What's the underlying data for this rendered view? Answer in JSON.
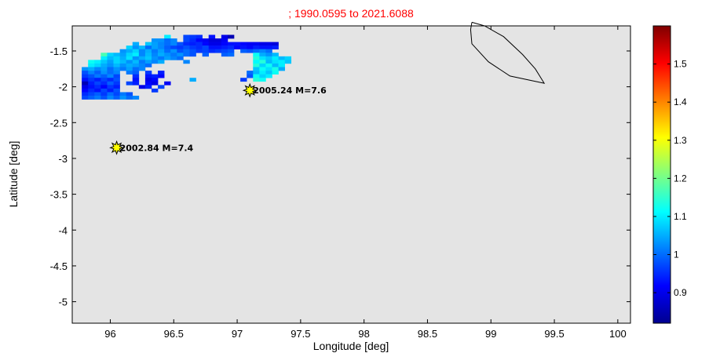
{
  "chart_data": {
    "type": "heatmap",
    "title": ";  1990.0595 to 2021.6088",
    "xlabel": "Longitude [deg]",
    "ylabel": "Latitude [deg]",
    "xlim": [
      95.7,
      100.1
    ],
    "ylim": [
      -5.3,
      -1.15
    ],
    "xticks": [
      "96",
      "96.5",
      "97",
      "97.5",
      "98",
      "98.5",
      "99",
      "99.5",
      "100"
    ],
    "xtick_values": [
      96,
      96.5,
      97,
      97.5,
      98,
      98.5,
      99,
      99.5,
      100
    ],
    "yticks": [
      "-1.5",
      "-2",
      "-2.5",
      "-3",
      "-3.5",
      "-4",
      "-4.5",
      "-5"
    ],
    "ytick_values": [
      -1.5,
      -2,
      -2.5,
      -3,
      -3.5,
      -4,
      -4.5,
      -5
    ],
    "background_color": "#e4e4e4",
    "grid": false,
    "colormap": "jet",
    "colorbar": {
      "range": [
        0.82,
        1.6
      ],
      "ticks": [
        "0.9",
        "1",
        "1.1",
        "1.2",
        "1.3",
        "1.4",
        "1.5"
      ],
      "tick_values": [
        0.9,
        1.0,
        1.1,
        1.2,
        1.3,
        1.4,
        1.5
      ],
      "placement": "right"
    },
    "cell_size_deg": 0.05,
    "cells": [
      [
        96.45,
        -1.3,
        1.1
      ],
      [
        96.6,
        -1.3,
        0.97
      ],
      [
        96.65,
        -1.3,
        0.96
      ],
      [
        96.7,
        -1.3,
        0.95
      ],
      [
        96.8,
        -1.3,
        0.93
      ],
      [
        96.9,
        -1.3,
        0.9
      ],
      [
        96.95,
        -1.3,
        0.86
      ],
      [
        96.35,
        -1.35,
        1.03
      ],
      [
        96.4,
        -1.35,
        1.03
      ],
      [
        96.45,
        -1.35,
        1.0
      ],
      [
        96.5,
        -1.35,
        1.02
      ],
      [
        96.6,
        -1.35,
        0.97
      ],
      [
        96.65,
        -1.35,
        0.95
      ],
      [
        96.7,
        -1.35,
        0.92
      ],
      [
        96.75,
        -1.35,
        0.91
      ],
      [
        96.8,
        -1.35,
        0.89
      ],
      [
        96.85,
        -1.35,
        0.89
      ],
      [
        96.9,
        -1.35,
        0.91
      ],
      [
        96.2,
        -1.4,
        1.05
      ],
      [
        96.3,
        -1.4,
        1.07
      ],
      [
        96.35,
        -1.4,
        1.04
      ],
      [
        96.4,
        -1.4,
        1.02
      ],
      [
        96.45,
        -1.4,
        1.0
      ],
      [
        96.5,
        -1.4,
        1.02
      ],
      [
        96.55,
        -1.4,
        0.98
      ],
      [
        96.6,
        -1.4,
        0.95
      ],
      [
        96.65,
        -1.4,
        0.94
      ],
      [
        96.7,
        -1.4,
        0.95
      ],
      [
        96.75,
        -1.4,
        0.92
      ],
      [
        96.8,
        -1.4,
        0.9
      ],
      [
        96.85,
        -1.4,
        0.9
      ],
      [
        96.9,
        -1.4,
        0.92
      ],
      [
        96.95,
        -1.4,
        0.93
      ],
      [
        97.0,
        -1.4,
        0.93
      ],
      [
        97.05,
        -1.4,
        0.92
      ],
      [
        97.1,
        -1.4,
        0.91
      ],
      [
        97.15,
        -1.4,
        0.91
      ],
      [
        97.2,
        -1.4,
        0.9
      ],
      [
        97.25,
        -1.4,
        0.9
      ],
      [
        97.3,
        -1.4,
        0.89
      ],
      [
        96.15,
        -1.45,
        1.08
      ],
      [
        96.2,
        -1.45,
        1.03
      ],
      [
        96.25,
        -1.45,
        1.06
      ],
      [
        96.3,
        -1.45,
        1.0
      ],
      [
        96.35,
        -1.45,
        1.04
      ],
      [
        96.4,
        -1.45,
        1.02
      ],
      [
        96.45,
        -1.45,
        0.99
      ],
      [
        96.5,
        -1.45,
        0.97
      ],
      [
        96.55,
        -1.45,
        0.96
      ],
      [
        96.6,
        -1.45,
        0.98
      ],
      [
        96.65,
        -1.45,
        0.96
      ],
      [
        96.7,
        -1.45,
        0.95
      ],
      [
        96.75,
        -1.45,
        0.97
      ],
      [
        96.8,
        -1.45,
        0.93
      ],
      [
        96.85,
        -1.45,
        0.93
      ],
      [
        96.9,
        -1.45,
        0.94
      ],
      [
        96.95,
        -1.45,
        0.95
      ],
      [
        97.0,
        -1.45,
        0.92
      ],
      [
        97.05,
        -1.45,
        0.93
      ],
      [
        97.1,
        -1.45,
        0.92
      ],
      [
        97.15,
        -1.45,
        0.94
      ],
      [
        97.2,
        -1.45,
        0.93
      ],
      [
        97.25,
        -1.45,
        0.93
      ],
      [
        97.3,
        -1.45,
        0.94
      ],
      [
        96.1,
        -1.5,
        1.03
      ],
      [
        96.15,
        -1.5,
        1.05
      ],
      [
        96.2,
        -1.5,
        1.08
      ],
      [
        96.25,
        -1.5,
        1.02
      ],
      [
        96.3,
        -1.5,
        1.05
      ],
      [
        96.35,
        -1.5,
        1.01
      ],
      [
        96.4,
        -1.5,
        1.04
      ],
      [
        96.45,
        -1.5,
        1.0
      ],
      [
        96.5,
        -1.5,
        1.03
      ],
      [
        96.55,
        -1.5,
        0.98
      ],
      [
        96.6,
        -1.5,
        1.0
      ],
      [
        96.65,
        -1.5,
        0.98
      ],
      [
        96.7,
        -1.5,
        0.96
      ],
      [
        96.75,
        -1.5,
        0.97
      ],
      [
        96.8,
        -1.5,
        0.95
      ],
      [
        96.85,
        -1.5,
        0.96
      ],
      [
        96.9,
        -1.5,
        0.97
      ],
      [
        96.95,
        -1.5,
        0.98
      ],
      [
        97.05,
        -1.5,
        0.99
      ],
      [
        97.1,
        -1.5,
        0.98
      ],
      [
        97.15,
        -1.5,
        1.0
      ],
      [
        97.2,
        -1.5,
        1.02
      ],
      [
        97.25,
        -1.5,
        1.0
      ],
      [
        95.95,
        -1.55,
        1.17
      ],
      [
        96.0,
        -1.55,
        1.08
      ],
      [
        96.05,
        -1.55,
        1.06
      ],
      [
        96.1,
        -1.55,
        1.04
      ],
      [
        96.15,
        -1.55,
        1.08
      ],
      [
        96.2,
        -1.55,
        1.1
      ],
      [
        96.25,
        -1.55,
        1.02
      ],
      [
        96.3,
        -1.55,
        1.06
      ],
      [
        96.35,
        -1.55,
        1.02
      ],
      [
        96.4,
        -1.55,
        1.05
      ],
      [
        96.45,
        -1.55,
        1.03
      ],
      [
        96.5,
        -1.55,
        1.01
      ],
      [
        96.55,
        -1.55,
        1.03
      ],
      [
        96.6,
        -1.55,
        1.0
      ],
      [
        96.65,
        -1.55,
        0.98
      ],
      [
        96.75,
        -1.55,
        0.99
      ],
      [
        96.9,
        -1.55,
        0.99
      ],
      [
        96.95,
        -1.55,
        1.0
      ],
      [
        97.15,
        -1.55,
        1.12
      ],
      [
        97.2,
        -1.55,
        1.05
      ],
      [
        97.25,
        -1.55,
        1.03
      ],
      [
        97.3,
        -1.55,
        1.06
      ],
      [
        95.95,
        -1.6,
        1.1
      ],
      [
        96.0,
        -1.6,
        1.06
      ],
      [
        96.05,
        -1.6,
        1.08
      ],
      [
        96.1,
        -1.6,
        1.05
      ],
      [
        96.15,
        -1.6,
        1.09
      ],
      [
        96.2,
        -1.6,
        1.03
      ],
      [
        96.25,
        -1.6,
        1.05
      ],
      [
        96.3,
        -1.6,
        1.07
      ],
      [
        96.35,
        -1.6,
        1.03
      ],
      [
        96.4,
        -1.6,
        1.01
      ],
      [
        96.45,
        -1.6,
        1.04
      ],
      [
        96.5,
        -1.6,
        1.02
      ],
      [
        96.55,
        -1.6,
        1.0
      ],
      [
        97.15,
        -1.6,
        1.14
      ],
      [
        97.2,
        -1.6,
        1.09
      ],
      [
        97.25,
        -1.6,
        1.07
      ],
      [
        97.3,
        -1.6,
        1.1
      ],
      [
        97.35,
        -1.6,
        1.06
      ],
      [
        97.4,
        -1.6,
        1.08
      ],
      [
        95.85,
        -1.65,
        1.12
      ],
      [
        95.9,
        -1.65,
        1.1
      ],
      [
        95.95,
        -1.65,
        1.07
      ],
      [
        96.0,
        -1.65,
        1.04
      ],
      [
        96.05,
        -1.65,
        1.08
      ],
      [
        96.1,
        -1.65,
        1.06
      ],
      [
        96.15,
        -1.65,
        1.03
      ],
      [
        96.2,
        -1.65,
        1.06
      ],
      [
        96.25,
        -1.65,
        1.01
      ],
      [
        96.3,
        -1.65,
        1.04
      ],
      [
        96.35,
        -1.65,
        1.02
      ],
      [
        96.4,
        -1.65,
        1.05
      ],
      [
        96.6,
        -1.65,
        1.02
      ],
      [
        97.15,
        -1.65,
        1.11
      ],
      [
        97.2,
        -1.65,
        1.14
      ],
      [
        97.25,
        -1.65,
        1.06
      ],
      [
        97.3,
        -1.65,
        1.09
      ],
      [
        97.35,
        -1.65,
        1.1
      ],
      [
        97.4,
        -1.65,
        1.07
      ],
      [
        95.85,
        -1.7,
        1.1
      ],
      [
        95.9,
        -1.7,
        1.08
      ],
      [
        95.95,
        -1.7,
        1.05
      ],
      [
        96.0,
        -1.7,
        1.03
      ],
      [
        96.05,
        -1.7,
        1.06
      ],
      [
        96.1,
        -1.7,
        1.03
      ],
      [
        96.15,
        -1.7,
        1.05
      ],
      [
        96.2,
        -1.7,
        1.04
      ],
      [
        96.25,
        -1.7,
        1.02
      ],
      [
        96.3,
        -1.7,
        1.0
      ],
      [
        97.15,
        -1.7,
        1.14
      ],
      [
        97.2,
        -1.7,
        1.08
      ],
      [
        97.25,
        -1.7,
        1.12
      ],
      [
        97.3,
        -1.7,
        1.06
      ],
      [
        97.35,
        -1.7,
        1.1
      ],
      [
        95.8,
        -1.75,
        1.03
      ],
      [
        95.85,
        -1.75,
        1.05
      ],
      [
        95.9,
        -1.75,
        1.02
      ],
      [
        95.95,
        -1.75,
        1.04
      ],
      [
        96.0,
        -1.75,
        1.0
      ],
      [
        96.05,
        -1.75,
        1.03
      ],
      [
        96.1,
        -1.75,
        1.01
      ],
      [
        96.15,
        -1.75,
        1.04
      ],
      [
        96.2,
        -1.75,
        1.0
      ],
      [
        96.25,
        -1.75,
        1.02
      ],
      [
        97.15,
        -1.75,
        1.07
      ],
      [
        97.2,
        -1.75,
        1.12
      ],
      [
        97.25,
        -1.75,
        1.09
      ],
      [
        97.3,
        -1.75,
        1.13
      ],
      [
        97.35,
        -1.75,
        1.05
      ],
      [
        95.8,
        -1.8,
        0.98
      ],
      [
        95.85,
        -1.8,
        1.02
      ],
      [
        95.9,
        -1.8,
        0.99
      ],
      [
        95.95,
        -1.8,
        1.03
      ],
      [
        96.0,
        -1.8,
        1.0
      ],
      [
        96.05,
        -1.8,
        1.02
      ],
      [
        96.15,
        -1.8,
        1.01
      ],
      [
        96.2,
        -1.8,
        0.99
      ],
      [
        96.3,
        -1.8,
        0.96
      ],
      [
        96.4,
        -1.8,
        0.94
      ],
      [
        97.1,
        -1.8,
        1.0
      ],
      [
        97.15,
        -1.8,
        1.06
      ],
      [
        97.2,
        -1.8,
        1.1
      ],
      [
        97.25,
        -1.8,
        1.07
      ],
      [
        97.3,
        -1.8,
        1.12
      ],
      [
        95.8,
        -1.85,
        0.96
      ],
      [
        95.85,
        -1.85,
        0.98
      ],
      [
        95.9,
        -1.85,
        1.01
      ],
      [
        95.95,
        -1.85,
        0.99
      ],
      [
        96.0,
        -1.85,
        1.02
      ],
      [
        96.05,
        -1.85,
        0.97
      ],
      [
        96.2,
        -1.85,
        0.95
      ],
      [
        96.3,
        -1.85,
        0.93
      ],
      [
        96.35,
        -1.85,
        0.94
      ],
      [
        96.4,
        -1.85,
        0.92
      ],
      [
        97.1,
        -1.85,
        0.98
      ],
      [
        97.15,
        -1.85,
        1.12
      ],
      [
        97.2,
        -1.85,
        1.08
      ],
      [
        97.25,
        -1.85,
        1.1
      ],
      [
        95.8,
        -1.9,
        0.93
      ],
      [
        95.85,
        -1.9,
        0.96
      ],
      [
        95.9,
        -1.9,
        0.94
      ],
      [
        95.95,
        -1.9,
        0.97
      ],
      [
        96.0,
        -1.9,
        0.95
      ],
      [
        96.05,
        -1.9,
        0.98
      ],
      [
        96.2,
        -1.9,
        0.93
      ],
      [
        96.3,
        -1.9,
        0.9
      ],
      [
        96.35,
        -1.9,
        0.92
      ],
      [
        96.65,
        -1.9,
        1.05
      ],
      [
        97.05,
        -1.9,
        0.96
      ],
      [
        97.15,
        -1.9,
        1.14
      ],
      [
        97.2,
        -1.9,
        1.12
      ],
      [
        95.8,
        -1.95,
        0.86
      ],
      [
        95.85,
        -1.95,
        0.94
      ],
      [
        95.9,
        -1.95,
        0.97
      ],
      [
        95.95,
        -1.95,
        0.95
      ],
      [
        96.0,
        -1.95,
        0.99
      ],
      [
        96.05,
        -1.95,
        0.96
      ],
      [
        96.15,
        -1.95,
        0.97
      ],
      [
        96.2,
        -1.95,
        0.94
      ],
      [
        96.3,
        -1.95,
        0.92
      ],
      [
        96.35,
        -1.95,
        0.9
      ],
      [
        96.45,
        -1.95,
        0.91
      ],
      [
        95.8,
        -2.0,
        0.9
      ],
      [
        95.85,
        -2.0,
        0.93
      ],
      [
        95.9,
        -2.0,
        0.95
      ],
      [
        95.95,
        -2.0,
        0.92
      ],
      [
        96.0,
        -2.0,
        0.96
      ],
      [
        96.05,
        -2.0,
        0.94
      ],
      [
        96.25,
        -2.0,
        0.9
      ],
      [
        96.3,
        -2.0,
        0.94
      ],
      [
        96.4,
        -2.0,
        0.97
      ],
      [
        95.8,
        -2.05,
        0.92
      ],
      [
        95.85,
        -2.05,
        0.95
      ],
      [
        95.9,
        -2.05,
        0.93
      ],
      [
        95.95,
        -2.05,
        0.97
      ],
      [
        96.0,
        -2.05,
        0.94
      ],
      [
        96.05,
        -2.05,
        0.98
      ],
      [
        96.35,
        -2.05,
        0.96
      ],
      [
        95.8,
        -2.1,
        0.95
      ],
      [
        95.85,
        -2.1,
        0.97
      ],
      [
        95.9,
        -2.1,
        0.99
      ],
      [
        95.95,
        -2.1,
        0.96
      ],
      [
        96.0,
        -2.1,
        1.0
      ],
      [
        96.05,
        -2.1,
        0.97
      ],
      [
        96.1,
        -2.1,
        1.01
      ],
      [
        96.15,
        -2.1,
        0.98
      ],
      [
        95.8,
        -2.15,
        0.97
      ],
      [
        95.85,
        -2.15,
        0.99
      ],
      [
        95.9,
        -2.15,
        1.01
      ],
      [
        95.95,
        -2.15,
        0.98
      ],
      [
        96.0,
        -2.15,
        1.02
      ],
      [
        96.05,
        -2.15,
        0.99
      ],
      [
        96.1,
        -2.15,
        1.03
      ],
      [
        96.15,
        -2.15,
        1.0
      ],
      [
        96.2,
        -2.15,
        1.02
      ]
    ],
    "outline": [
      [
        98.85,
        -1.1
      ],
      [
        98.95,
        -1.15
      ],
      [
        99.1,
        -1.3
      ],
      [
        99.25,
        -1.55
      ],
      [
        99.35,
        -1.75
      ],
      [
        99.42,
        -1.95
      ],
      [
        99.15,
        -1.85
      ],
      [
        98.98,
        -1.65
      ],
      [
        98.85,
        -1.4
      ],
      [
        98.84,
        -1.2
      ],
      [
        98.85,
        -1.1
      ]
    ],
    "annotations": [
      {
        "x": 97.1,
        "y": -2.05,
        "text": "2005.24 M=7.6"
      },
      {
        "x": 96.05,
        "y": -2.85,
        "text": "2002.84 M=7.4"
      }
    ]
  }
}
